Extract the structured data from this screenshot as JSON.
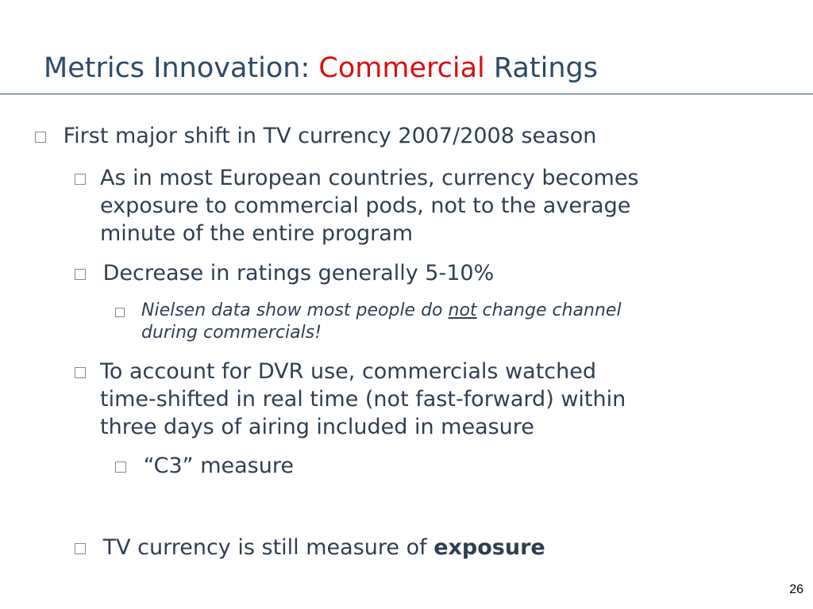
{
  "slide": {
    "title_part1": "Metrics Innovation: ",
    "title_accent": "Commercial",
    "title_part2": " Ratings",
    "page_number": "26",
    "bullets": {
      "b1": "First major shift in TV currency 2007/2008 season",
      "b1_1_line1": "As in most European countries, currency becomes",
      "b1_1_line2": "exposure to commercial pods, not to the average",
      "b1_1_line3": "minute of the entire program",
      "b1_2": "Decrease in ratings generally 5-10%",
      "b1_2_1_pre": "Nielsen data show most people do ",
      "b1_2_1_emph": "not",
      "b1_2_1_post": " change channel",
      "b1_2_1_line2": "during commercials!",
      "b1_3_line1": "To account for DVR use, commercials watched",
      "b1_3_line2": "time-shifted in real time (not fast-forward) within",
      "b1_3_line3": "three days of airing included in measure",
      "b1_3_1": "“C3” measure",
      "b2_pre": "TV currency is still measure of ",
      "b2_emph": "exposure"
    }
  }
}
